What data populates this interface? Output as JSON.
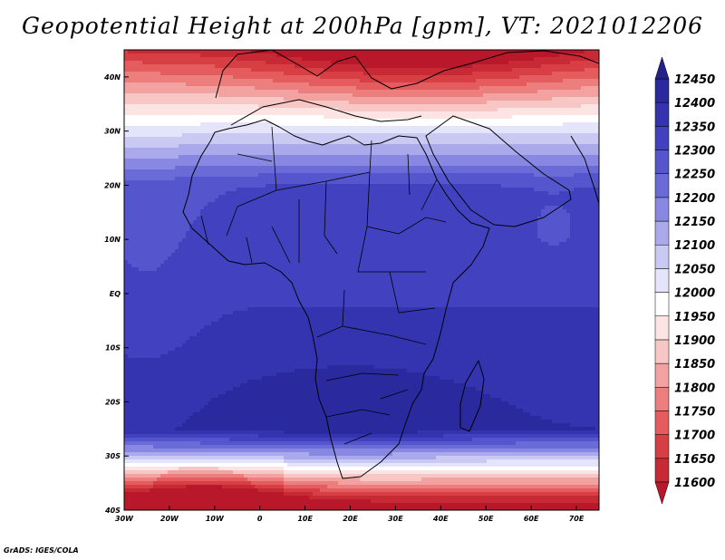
{
  "title": "Geopotential Height at 200hPa [gpm], VT: 2021012206",
  "credit": "GrADS: IGES/COLA",
  "chart_data": {
    "type": "heatmap",
    "variable": "Geopotential Height",
    "level": "200hPa",
    "units": "gpm",
    "valid_time": "2021012206",
    "lon_range": [
      -30,
      75
    ],
    "lat_range": [
      -40,
      45
    ],
    "x_ticks": [
      "30W",
      "20W",
      "10W",
      "0",
      "10E",
      "20E",
      "30E",
      "40E",
      "50E",
      "60E",
      "70E"
    ],
    "y_ticks": [
      "40N",
      "30N",
      "20N",
      "10N",
      "EQ",
      "10S",
      "20S",
      "30S",
      "40S"
    ],
    "colorbar": {
      "levels": [
        "11600",
        "11650",
        "11700",
        "11750",
        "11800",
        "11850",
        "11900",
        "11950",
        "12000",
        "12050",
        "12100",
        "12150",
        "12200",
        "12250",
        "12300",
        "12350",
        "12400",
        "12450"
      ],
      "colors": [
        "#b8182a",
        "#c82a35",
        "#d83f45",
        "#e45c5d",
        "#ec7f7d",
        "#f2a3a1",
        "#f7c7c5",
        "#fbe4e3",
        "#ffffff",
        "#e4e4fb",
        "#c9c9f4",
        "#a9a9ec",
        "#8888e3",
        "#6b6bd8",
        "#5555cd",
        "#4242c0",
        "#3434b0",
        "#2a2a9e",
        "#22228a"
      ],
      "orientation": "vertical",
      "extend": "both"
    }
  }
}
